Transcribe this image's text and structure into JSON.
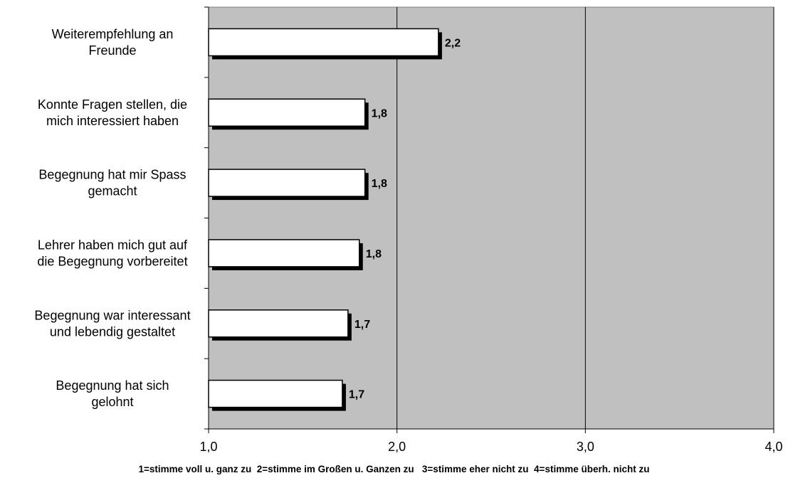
{
  "chart_data": {
    "type": "bar",
    "orientation": "horizontal",
    "categories": [
      [
        "Weiterempfehlung an",
        "Freunde"
      ],
      [
        "Konnte Fragen stellen, die",
        "mich interessiert haben"
      ],
      [
        "Begegnung hat mir Spass",
        "gemacht"
      ],
      [
        "Lehrer haben mich gut auf",
        "die Begegnung vorbereitet"
      ],
      [
        "Begegnung war interessant",
        "und lebendig gestaltet"
      ],
      [
        "Begegnung hat sich",
        "gelohnt"
      ]
    ],
    "values": [
      2.22,
      1.83,
      1.83,
      1.8,
      1.74,
      1.71
    ],
    "data_labels": [
      "2,2",
      "1,8",
      "1,8",
      "1,8",
      "1,7",
      "1,7"
    ],
    "xlim": [
      1.0,
      4.0
    ],
    "x_ticks": [
      1.0,
      2.0,
      3.0,
      4.0
    ],
    "x_tick_labels": [
      "1,0",
      "2,0",
      "3,0",
      "4,0"
    ],
    "grid": "vertical major gridlines",
    "legend": "none",
    "title": "",
    "xlabel": "1=stimme voll u. ganz zu  2=stimme im Großen u. Ganzen zu   3=stimme eher nicht zu  4=stimme überh. nicht zu",
    "ylabel": "",
    "colors": {
      "plot_background": "#c0c0c0",
      "bar_fill": "#ffffff",
      "bar_border": "#000000",
      "bar_shadow": "#000000",
      "gridline": "#000000"
    }
  }
}
